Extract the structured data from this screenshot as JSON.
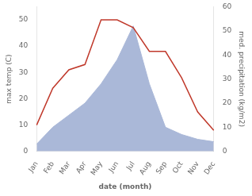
{
  "chart_data": {
    "type": "line",
    "categories": [
      "Jan",
      "Feb",
      "Mar",
      "Apr",
      "May",
      "Jun",
      "Jul",
      "Aug",
      "Sep",
      "Oct",
      "Nov",
      "Dec"
    ],
    "series": [
      {
        "type": "area",
        "axis": "y2",
        "color": "#aab8d8",
        "values": [
          3,
          10,
          15,
          20,
          28,
          38,
          52,
          28,
          10,
          7,
          5,
          4
        ]
      },
      {
        "type": "line",
        "color": "#c0392b",
        "values": [
          10,
          24,
          31,
          33,
          50,
          50,
          47,
          38,
          38,
          28,
          15,
          8
        ]
      }
    ],
    "xlabel": "date (month)",
    "ylabel": "max temp (C)",
    "y2label": "med. precipitation (kg/m2)",
    "ylim": [
      0,
      55
    ],
    "yticks": [
      0,
      10,
      20,
      30,
      40,
      50
    ],
    "y2lim": [
      0,
      60
    ],
    "y2ticks": [
      0,
      10,
      20,
      30,
      40,
      50,
      60
    ],
    "grid": false
  }
}
